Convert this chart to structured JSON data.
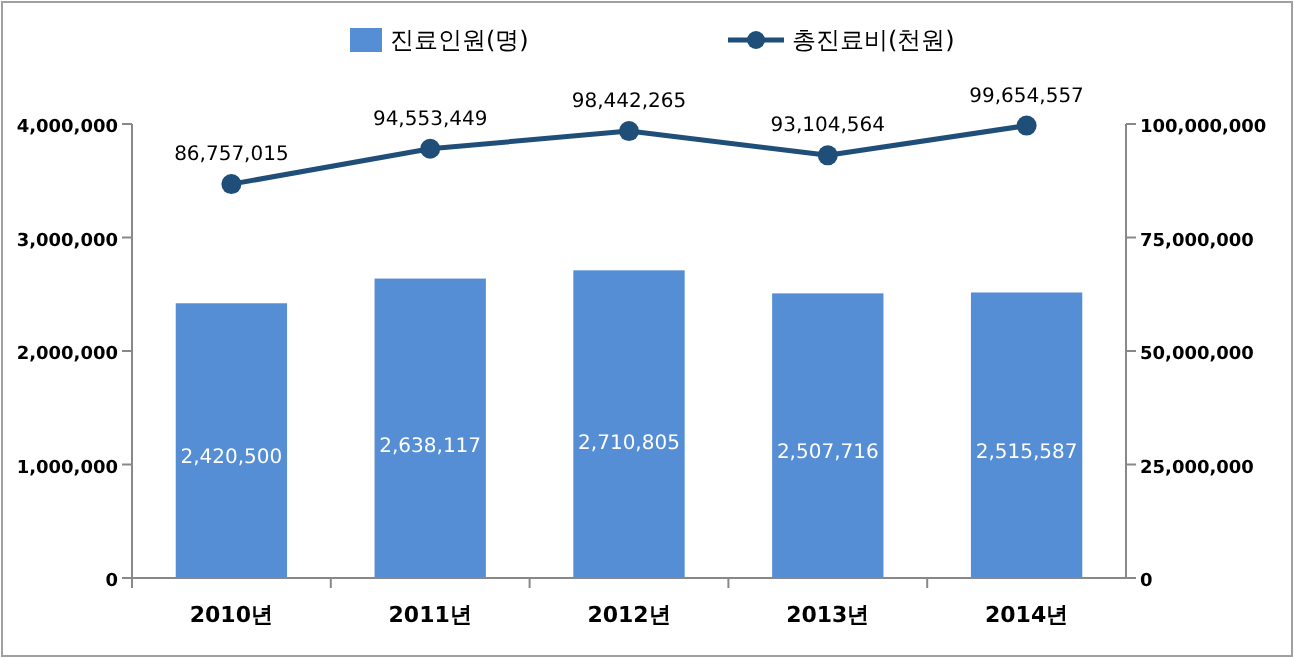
{
  "chart_data": {
    "type": "bar",
    "categories": [
      "2010년",
      "2011년",
      "2012년",
      "2013년",
      "2014년"
    ],
    "series": [
      {
        "name": "진료인원(명)",
        "axis": "y",
        "color": "#558ed5",
        "values": [
          2420500,
          2638117,
          2710805,
          2507716,
          2515587
        ],
        "value_labels": [
          "2,420,500",
          "2,638,117",
          "2,710,805",
          "2,507,716",
          "2,515,587"
        ]
      },
      {
        "name": "총진료비(천원)",
        "type": "line",
        "axis": "y2",
        "color": "#1f4e79",
        "marker": "circle",
        "values": [
          86757015,
          94553449,
          98442265,
          93104564,
          99654557
        ],
        "value_labels": [
          "86,757,015",
          "94,553,449",
          "98,442,265",
          "93,104,564",
          "99,654,557"
        ]
      }
    ],
    "ylim": [
      0,
      4000000
    ],
    "yticks": [
      {
        "value": 0,
        "label": "0"
      },
      {
        "value": 1000000,
        "label": "1,000,000"
      },
      {
        "value": 2000000,
        "label": "2,000,000"
      },
      {
        "value": 3000000,
        "label": "3,000,000"
      },
      {
        "value": 4000000,
        "label": "4,000,000"
      }
    ],
    "y2lim": [
      0,
      100000000
    ],
    "y2ticks": [
      {
        "value": 0,
        "label": "0"
      },
      {
        "value": 25000000,
        "label": "25,000,000"
      },
      {
        "value": 50000000,
        "label": "50,000,000"
      },
      {
        "value": 75000000,
        "label": "75,000,000"
      },
      {
        "value": 100000000,
        "label": "100,000,000"
      }
    ],
    "legend": "top",
    "grid": false
  }
}
